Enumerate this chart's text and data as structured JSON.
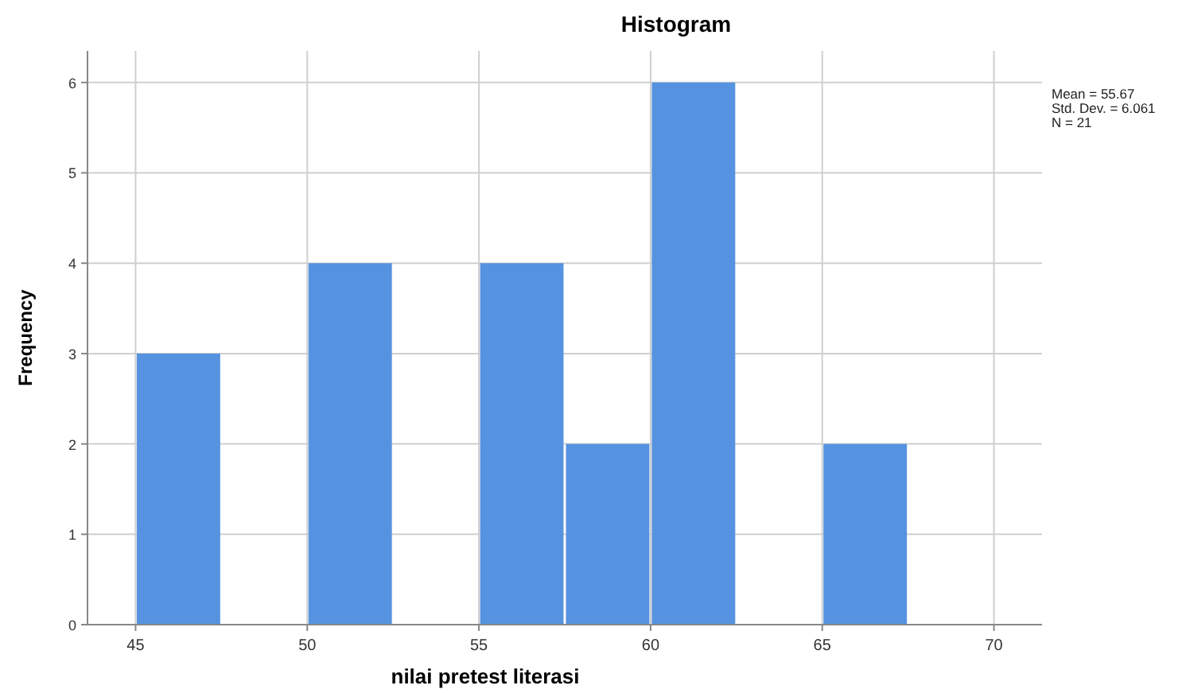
{
  "chart_data": {
    "type": "histogram",
    "title": "Histogram",
    "xlabel": "nilai pretest literasi",
    "ylabel": "Frequency",
    "bins": [
      45,
      47.5,
      50,
      52.5,
      55,
      57.5,
      60,
      62.5,
      65,
      67.5
    ],
    "values": [
      3,
      0,
      4,
      0,
      4,
      2,
      6,
      0,
      2
    ],
    "color": "#5593e0",
    "xlim": [
      43.6,
      71.4
    ],
    "xticks": [
      45,
      50,
      55,
      60,
      65,
      70
    ],
    "ylim": [
      0,
      6.35
    ],
    "yticks": [
      0,
      1,
      2,
      3,
      4,
      5,
      6
    ],
    "grid": true,
    "annotations": [
      "Mean = 55.67",
      "Std. Dev. = 6.061",
      "N = 21"
    ]
  }
}
